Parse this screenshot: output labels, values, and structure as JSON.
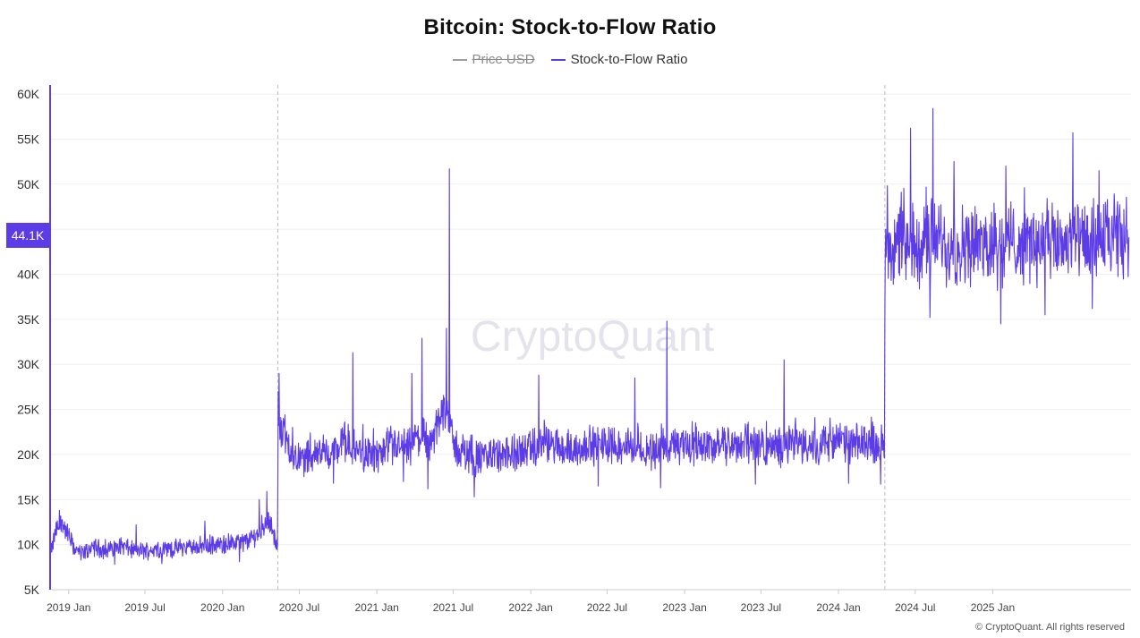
{
  "title": "Bitcoin: Stock-to-Flow Ratio",
  "legend": [
    {
      "label": "Price USD",
      "color": "#9e9e9e",
      "hidden": true
    },
    {
      "label": "Stock-to-Flow Ratio",
      "color": "#5b3ce6",
      "hidden": false
    }
  ],
  "watermark": "CryptoQuant",
  "copyright": "© CryptoQuant. All rights reserved",
  "current_value_label": "44.1K",
  "colors": {
    "series": "#5b3ce6",
    "grid": "#efefef",
    "axis": "#cccccc",
    "halving_line": "#bdbdbd"
  },
  "chart_data": {
    "type": "line",
    "title": "Bitcoin: Stock-to-Flow Ratio",
    "xlabel": "",
    "ylabel": "",
    "ylim": [
      5000,
      61000
    ],
    "xlim": [
      "2018-11-20",
      "2025-11-25"
    ],
    "y_ticks": [
      5000,
      10000,
      15000,
      20000,
      25000,
      30000,
      35000,
      40000,
      45000,
      50000,
      55000,
      60000
    ],
    "y_tick_labels": [
      "5K",
      "10K",
      "15K",
      "20K",
      "25K",
      "30K",
      "35K",
      "40K",
      "45K",
      "50K",
      "55K",
      "60K"
    ],
    "x_ticks": [
      "2019-01-01",
      "2019-07-01",
      "2020-01-01",
      "2020-07-01",
      "2021-01-01",
      "2021-07-01",
      "2022-01-01",
      "2022-07-01",
      "2023-01-01",
      "2023-07-01",
      "2024-01-01",
      "2024-07-01",
      "2025-01-01"
    ],
    "x_tick_labels": [
      "2019 Jan",
      "2019 Jul",
      "2020 Jan",
      "2020 Jul",
      "2021 Jan",
      "2021 Jul",
      "2022 Jan",
      "2022 Jul",
      "2023 Jan",
      "2023 Jul",
      "2024 Jan",
      "2024 Jul",
      "2025 Jan"
    ],
    "halving_dates": [
      "2020-05-11",
      "2024-04-20"
    ],
    "grid": true,
    "legend_position": "top-center",
    "series": [
      {
        "name": "Stock-to-Flow Ratio",
        "points": [
          [
            "2018-11-20",
            9000
          ],
          [
            "2018-12-01",
            11500
          ],
          [
            "2018-12-15",
            12500
          ],
          [
            "2019-01-01",
            11000
          ],
          [
            "2019-01-15",
            9500
          ],
          [
            "2019-02-01",
            9000
          ],
          [
            "2019-03-01",
            9800
          ],
          [
            "2019-04-01",
            9300
          ],
          [
            "2019-05-01",
            10000
          ],
          [
            "2019-06-01",
            9400
          ],
          [
            "2019-07-01",
            9300
          ],
          [
            "2019-08-01",
            9600
          ],
          [
            "2019-09-01",
            9500
          ],
          [
            "2019-10-01",
            9700
          ],
          [
            "2019-11-01",
            9800
          ],
          [
            "2019-12-01",
            10000
          ],
          [
            "2020-01-01",
            9900
          ],
          [
            "2020-02-01",
            10200
          ],
          [
            "2020-03-01",
            10400
          ],
          [
            "2020-04-01",
            11500
          ],
          [
            "2020-04-20",
            13000
          ],
          [
            "2020-05-10",
            9500
          ],
          [
            "2020-05-12",
            24000
          ],
          [
            "2020-05-25",
            22500
          ],
          [
            "2020-06-15",
            20000
          ],
          [
            "2020-07-15",
            19500
          ],
          [
            "2020-08-15",
            20500
          ],
          [
            "2020-09-15",
            20000
          ],
          [
            "2020-10-15",
            21500
          ],
          [
            "2020-11-15",
            20500
          ],
          [
            "2020-12-15",
            20000
          ],
          [
            "2021-01-15",
            20000
          ],
          [
            "2021-02-15",
            21000
          ],
          [
            "2021-03-15",
            20500
          ],
          [
            "2021-04-15",
            22000
          ],
          [
            "2021-05-15",
            21500
          ],
          [
            "2021-06-01",
            24000
          ],
          [
            "2021-06-15",
            26000
          ],
          [
            "2021-07-01",
            21000
          ],
          [
            "2021-08-01",
            20000
          ],
          [
            "2021-09-01",
            19500
          ],
          [
            "2021-10-01",
            20000
          ],
          [
            "2021-11-01",
            19800
          ],
          [
            "2021-12-01",
            20200
          ],
          [
            "2022-01-01",
            20500
          ],
          [
            "2022-02-01",
            21000
          ],
          [
            "2022-03-01",
            21000
          ],
          [
            "2022-04-01",
            20500
          ],
          [
            "2022-05-01",
            20800
          ],
          [
            "2022-06-01",
            21000
          ],
          [
            "2022-07-01",
            21200
          ],
          [
            "2022-08-01",
            21000
          ],
          [
            "2022-09-01",
            20800
          ],
          [
            "2022-10-01",
            20500
          ],
          [
            "2022-11-01",
            20600
          ],
          [
            "2022-12-01",
            20800
          ],
          [
            "2023-01-01",
            21000
          ],
          [
            "2023-02-01",
            21200
          ],
          [
            "2023-03-01",
            21000
          ],
          [
            "2023-04-01",
            20900
          ],
          [
            "2023-05-01",
            21300
          ],
          [
            "2023-06-01",
            21000
          ],
          [
            "2023-07-01",
            21000
          ],
          [
            "2023-08-01",
            20800
          ],
          [
            "2023-09-01",
            21000
          ],
          [
            "2023-10-01",
            21200
          ],
          [
            "2023-11-01",
            21000
          ],
          [
            "2023-12-01",
            21300
          ],
          [
            "2024-01-01",
            21500
          ],
          [
            "2024-02-01",
            21000
          ],
          [
            "2024-03-01",
            21300
          ],
          [
            "2024-04-19",
            21000
          ],
          [
            "2024-04-21",
            44000
          ],
          [
            "2024-05-15",
            43500
          ],
          [
            "2024-06-15",
            43000
          ],
          [
            "2024-07-15",
            43500
          ],
          [
            "2024-08-15",
            44000
          ],
          [
            "2024-09-15",
            43000
          ],
          [
            "2024-10-15",
            43500
          ],
          [
            "2024-11-15",
            43000
          ],
          [
            "2024-12-15",
            43500
          ],
          [
            "2025-01-15",
            43000
          ],
          [
            "2025-02-15",
            43800
          ],
          [
            "2025-03-15",
            43200
          ],
          [
            "2025-04-15",
            43500
          ],
          [
            "2025-05-15",
            43000
          ],
          [
            "2025-06-15",
            43500
          ],
          [
            "2025-07-15",
            43800
          ],
          [
            "2025-08-15",
            43000
          ],
          [
            "2025-09-15",
            44000
          ],
          [
            "2025-10-15",
            43500
          ],
          [
            "2025-11-20",
            44100
          ]
        ],
        "spikes": [
          [
            "2018-12-10",
            13800
          ],
          [
            "2019-06-10",
            12200
          ],
          [
            "2019-11-20",
            12600
          ],
          [
            "2020-03-28",
            15000
          ],
          [
            "2020-04-15",
            15900
          ],
          [
            "2020-05-14",
            29000
          ],
          [
            "2020-11-05",
            31300
          ],
          [
            "2021-03-25",
            29000
          ],
          [
            "2021-04-18",
            32900
          ],
          [
            "2021-06-15",
            34000
          ],
          [
            "2021-06-22",
            51700
          ],
          [
            "2022-01-20",
            28800
          ],
          [
            "2022-09-05",
            28500
          ],
          [
            "2022-11-20",
            34800
          ],
          [
            "2023-08-25",
            30500
          ],
          [
            "2024-08-12",
            58400
          ],
          [
            "2024-06-20",
            56200
          ],
          [
            "2025-07-10",
            55700
          ],
          [
            "2024-10-01",
            52500
          ],
          [
            "2025-02-01",
            52000
          ],
          [
            "2024-04-22",
            45000
          ],
          [
            "2025-09-10",
            51500
          ]
        ],
        "dips": [
          [
            "2019-04-20",
            7800
          ],
          [
            "2019-08-10",
            7900
          ],
          [
            "2020-02-10",
            8100
          ],
          [
            "2020-09-20",
            16800
          ],
          [
            "2021-03-05",
            17000
          ],
          [
            "2021-05-02",
            16200
          ],
          [
            "2021-08-20",
            15300
          ],
          [
            "2022-06-10",
            16500
          ],
          [
            "2022-11-05",
            16300
          ],
          [
            "2023-06-18",
            16700
          ],
          [
            "2024-01-25",
            16800
          ],
          [
            "2024-04-10",
            16700
          ],
          [
            "2024-08-05",
            35200
          ],
          [
            "2025-01-20",
            34500
          ],
          [
            "2025-05-05",
            35500
          ],
          [
            "2025-08-25",
            36200
          ]
        ],
        "last_value": 44100
      },
      {
        "name": "Price USD",
        "points": []
      }
    ]
  }
}
